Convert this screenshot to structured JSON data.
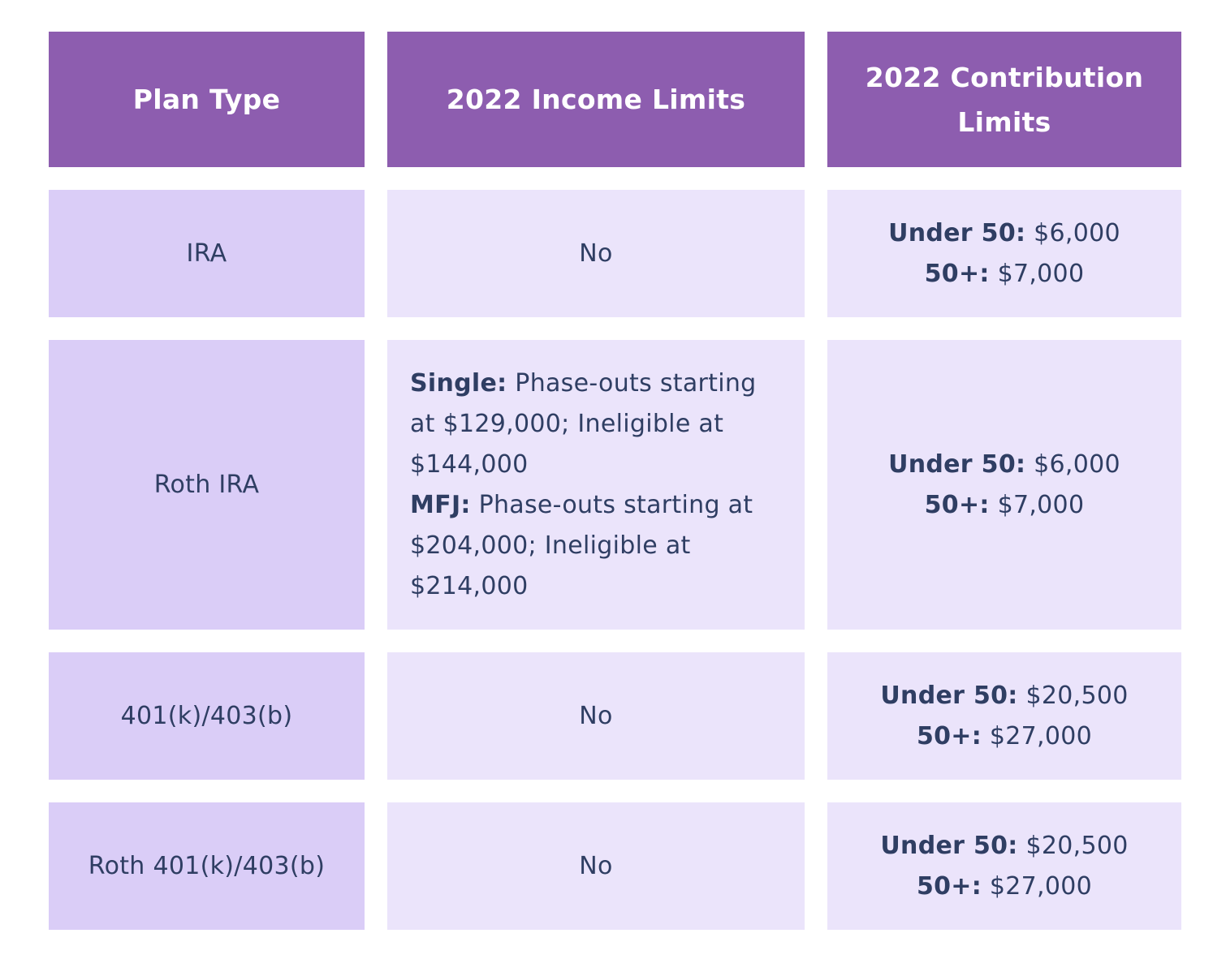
{
  "headers": {
    "plan_type": "Plan Type",
    "income_limits": "2022 Income Limits",
    "contribution_limits": "2022 Contribution Limits"
  },
  "rows": [
    {
      "plan": "IRA",
      "income": "No",
      "contrib": {
        "under_label": "Under 50:",
        "under_value": "$6,000",
        "over_label": "50+:",
        "over_value": "$7,000"
      }
    },
    {
      "plan": "Roth IRA",
      "income": {
        "single_label": "Single:",
        "single_text": "Phase-outs starting at $129,000; Ineligible at $144,000",
        "mfj_label": "MFJ:",
        "mfj_text": "Phase-outs starting at $204,000; Ineligible at $214,000"
      },
      "contrib": {
        "under_label": "Under 50:",
        "under_value": "$6,000",
        "over_label": "50+:",
        "over_value": "$7,000"
      }
    },
    {
      "plan": "401(k)/403(b)",
      "income": "No",
      "contrib": {
        "under_label": "Under 50:",
        "under_value": "$20,500",
        "over_label": "50+:",
        "over_value": "$27,000"
      }
    },
    {
      "plan": "Roth 401(k)/403(b)",
      "income": "No",
      "contrib": {
        "under_label": "Under 50:",
        "under_value": "$20,500",
        "over_label": "50+:",
        "over_value": "$27,000"
      }
    }
  ]
}
